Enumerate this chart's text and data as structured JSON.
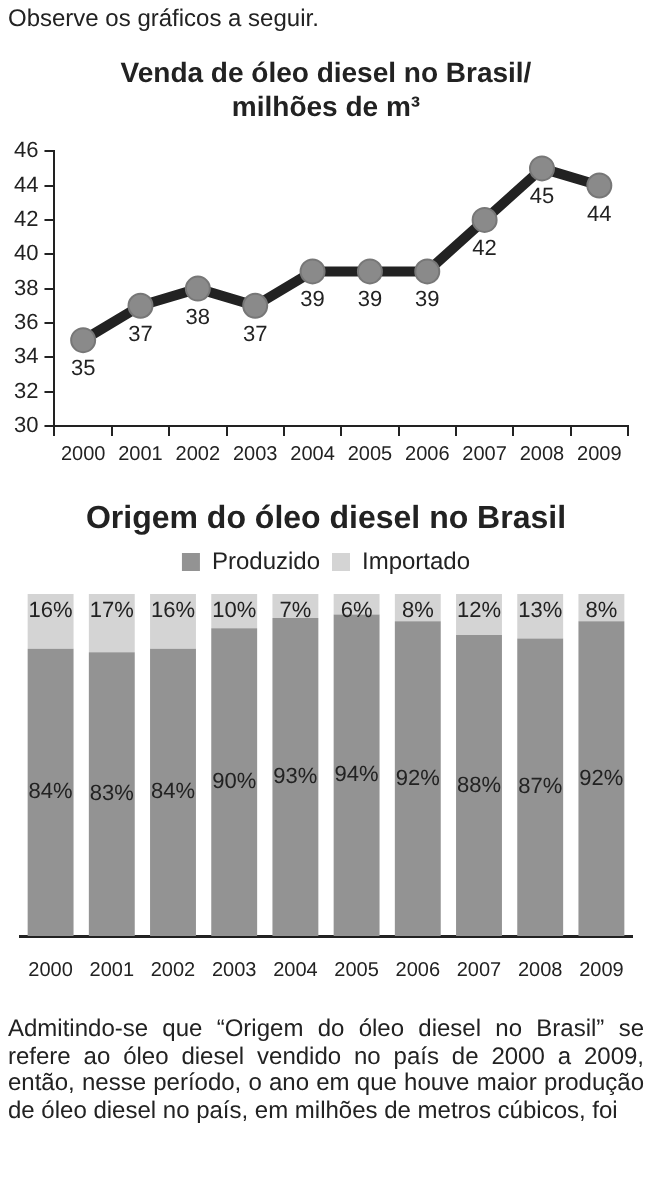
{
  "chart_data": [
    {
      "type": "line",
      "title": "Venda de óleo diesel no Brasil/ milhões de m³",
      "annotations": [
        "Observe os gráficos a seguir."
      ],
      "categories": [
        "2000",
        "2001",
        "2002",
        "2003",
        "2004",
        "2005",
        "2006",
        "2007",
        "2008",
        "2009"
      ],
      "series": [
        {
          "color": "#222222",
          "values": [
            35,
            37,
            38,
            37,
            39,
            39,
            39,
            42,
            45,
            44
          ]
        }
      ],
      "ylim": [
        30,
        46
      ],
      "yticks": [
        30,
        32,
        34,
        36,
        38,
        40,
        42,
        44,
        46
      ],
      "marker": "circle",
      "data_labels": true,
      "legend": false
    },
    {
      "type": "bar",
      "title": "Origem do óleo diesel no Brasil",
      "annotations": [
        "Admitindo-se que “Origem do óleo diesel no Brasil” se refere ao óleo diesel vendido no país de 2000 a 2009, então, nesse período, o ano em que houve maior produção de óleo diesel no país, em milhões de metros cúbicos, foi"
      ],
      "categories": [
        "2000",
        "2001",
        "2002",
        "2003",
        "2004",
        "2005",
        "2006",
        "2007",
        "2008",
        "2009"
      ],
      "stacked": true,
      "legend": "top",
      "series": [
        {
          "name": "Produzido",
          "color": "#939393",
          "values": [
            84,
            83,
            84,
            90,
            93,
            94,
            92,
            88,
            87,
            92
          ],
          "value_labels": [
            "84%",
            "83%",
            "84%",
            "90%",
            "93%",
            "94%",
            "92%",
            "88%",
            "87%",
            "92%"
          ]
        },
        {
          "name": "Importado",
          "color": "#d4d4d4",
          "values": [
            16,
            17,
            16,
            10,
            7,
            6,
            8,
            12,
            13,
            8
          ],
          "value_labels": [
            "16%",
            "17%",
            "16%",
            "10%",
            "7%",
            "6%",
            "8%",
            "12%",
            "13%",
            "8%"
          ]
        }
      ]
    }
  ]
}
